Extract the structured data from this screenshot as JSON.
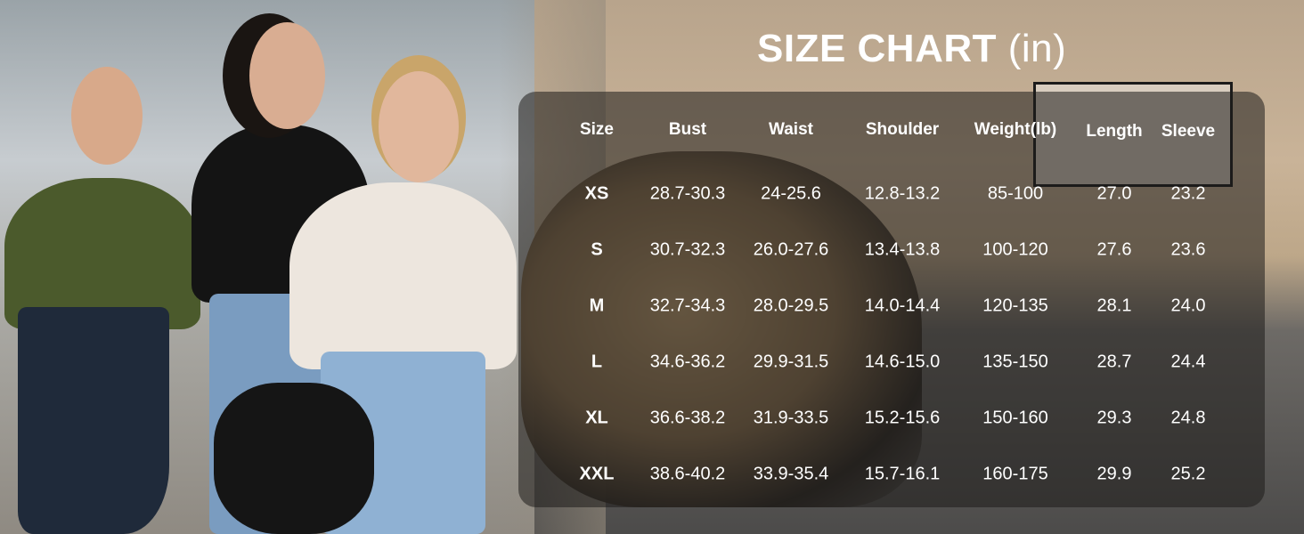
{
  "title": {
    "main": "SIZE CHART",
    "unit": "(in)"
  },
  "table": {
    "headers": [
      "Size",
      "Bust",
      "Waist",
      "Shoulder",
      "Weight(lb)",
      "Length",
      "Sleeve"
    ],
    "rows": [
      [
        "XS",
        "28.7-30.3",
        "24-25.6",
        "12.8-13.2",
        "85-100",
        "27.0",
        "23.2"
      ],
      [
        "S",
        "30.7-32.3",
        "26.0-27.6",
        "13.4-13.8",
        "100-120",
        "27.6",
        "23.6"
      ],
      [
        "M",
        "32.7-34.3",
        "28.0-29.5",
        "14.0-14.4",
        "120-135",
        "28.1",
        "24.0"
      ],
      [
        "L",
        "34.6-36.2",
        "29.9-31.5",
        "14.6-15.0",
        "135-150",
        "28.7",
        "24.4"
      ],
      [
        "XL",
        "36.6-38.2",
        "31.9-33.5",
        "15.2-15.6",
        "150-160",
        "29.3",
        "24.8"
      ],
      [
        "XXL",
        "38.6-40.2",
        "33.9-35.4",
        "15.7-16.1",
        "160-175",
        "29.9",
        "25.2"
      ]
    ]
  },
  "colors": {
    "text": "#ffffff",
    "panel": "rgba(30,28,26,0.55)",
    "shirt_green": "#4b5a2c",
    "shirt_black": "#141414",
    "shirt_white": "#ede6de"
  }
}
